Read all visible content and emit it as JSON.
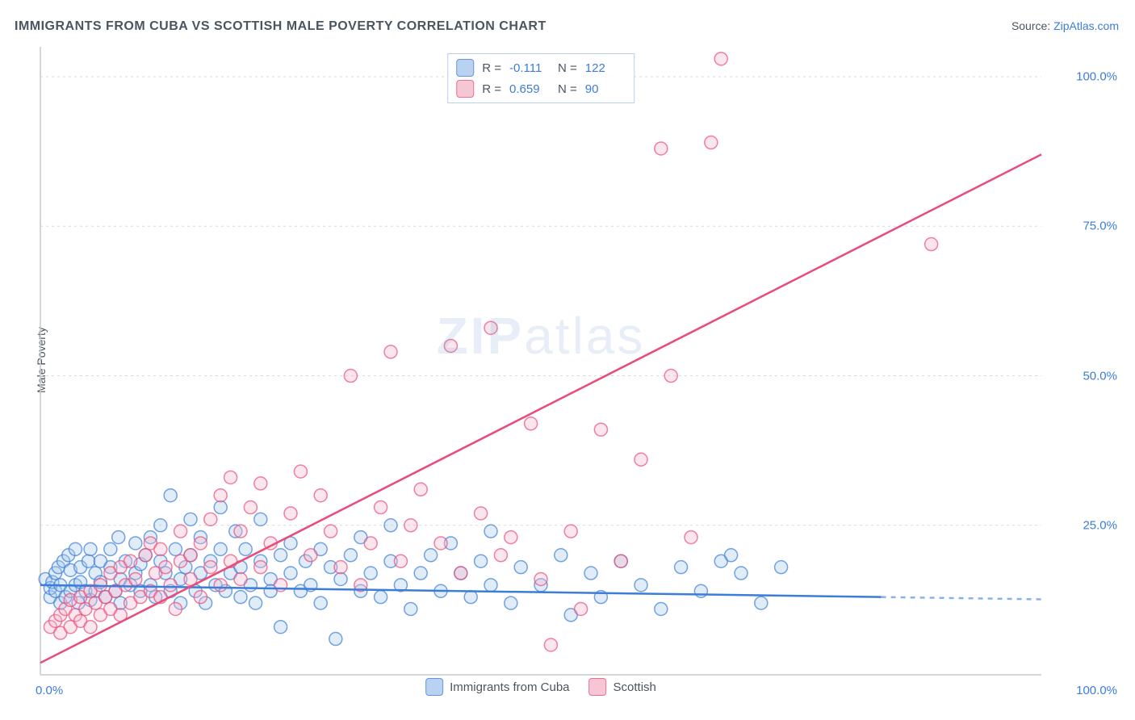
{
  "title": "IMMIGRANTS FROM CUBA VS SCOTTISH MALE POVERTY CORRELATION CHART",
  "source": {
    "label": "Source: ",
    "site": "ZipAtlas.com"
  },
  "y_axis_label": "Male Poverty",
  "watermark": {
    "part1": "ZIP",
    "part2": "atlas"
  },
  "chart": {
    "type": "scatter",
    "xlim": [
      0,
      100
    ],
    "ylim": [
      0,
      105
    ],
    "x_ticks": [
      {
        "value": 0,
        "label": "0.0%"
      },
      {
        "value": 100,
        "label": "100.0%"
      }
    ],
    "y_ticks": [
      {
        "value": 25,
        "label": "25.0%"
      },
      {
        "value": 50,
        "label": "50.0%"
      },
      {
        "value": 75,
        "label": "75.0%"
      },
      {
        "value": 100,
        "label": "100.0%"
      }
    ],
    "grid_color": "#d9d9d9",
    "axis_color": "#c9c9c9",
    "background_color": "#ffffff",
    "marker_radius": 8,
    "marker_stroke_width": 1.5,
    "fill_opacity": 0.35,
    "line_width": 2.5
  },
  "series": [
    {
      "key": "cuba",
      "name": "Immigrants from Cuba",
      "color_stroke": "#3b7dd8",
      "color_fill": "#a8c8ef",
      "R": "-0.111",
      "N": "122",
      "trend": {
        "x1": 0,
        "y1": 15,
        "x2": 84,
        "y2": 13,
        "dash_from_x": 84,
        "dash_to_x": 100
      },
      "points": [
        [
          0.5,
          16
        ],
        [
          1,
          13
        ],
        [
          1,
          14.5
        ],
        [
          1.2,
          15.5
        ],
        [
          1.5,
          17
        ],
        [
          1.5,
          14
        ],
        [
          1.8,
          18
        ],
        [
          2,
          12
        ],
        [
          2,
          15
        ],
        [
          2.3,
          19
        ],
        [
          2.5,
          13
        ],
        [
          2.8,
          20
        ],
        [
          3,
          14
        ],
        [
          3,
          17.5
        ],
        [
          3.5,
          15
        ],
        [
          3.5,
          21
        ],
        [
          3.8,
          12
        ],
        [
          4,
          18
        ],
        [
          4,
          15.5
        ],
        [
          4.5,
          14
        ],
        [
          4.8,
          19
        ],
        [
          5,
          21
        ],
        [
          5,
          12.5
        ],
        [
          5.5,
          17
        ],
        [
          5.5,
          14
        ],
        [
          6,
          15.5
        ],
        [
          6,
          19
        ],
        [
          6.5,
          13
        ],
        [
          7,
          18
        ],
        [
          7,
          21
        ],
        [
          7.5,
          14
        ],
        [
          7.8,
          23
        ],
        [
          8,
          16
        ],
        [
          8,
          12
        ],
        [
          8.5,
          19
        ],
        [
          9,
          15
        ],
        [
          9.5,
          17
        ],
        [
          9.5,
          22
        ],
        [
          10,
          14
        ],
        [
          10,
          18.5
        ],
        [
          10.5,
          20
        ],
        [
          11,
          15
        ],
        [
          11,
          23
        ],
        [
          11.5,
          13
        ],
        [
          12,
          19
        ],
        [
          12,
          25
        ],
        [
          12.5,
          17
        ],
        [
          13,
          14
        ],
        [
          13,
          30
        ],
        [
          13.5,
          21
        ],
        [
          14,
          16
        ],
        [
          14,
          12
        ],
        [
          14.5,
          18
        ],
        [
          15,
          20
        ],
        [
          15,
          26
        ],
        [
          15.5,
          14
        ],
        [
          16,
          17
        ],
        [
          16,
          23
        ],
        [
          16.5,
          12
        ],
        [
          17,
          19
        ],
        [
          17.5,
          15
        ],
        [
          18,
          21
        ],
        [
          18,
          28
        ],
        [
          18.5,
          14
        ],
        [
          19,
          17
        ],
        [
          19.5,
          24
        ],
        [
          20,
          13
        ],
        [
          20,
          18
        ],
        [
          20.5,
          21
        ],
        [
          21,
          15
        ],
        [
          21.5,
          12
        ],
        [
          22,
          19
        ],
        [
          22,
          26
        ],
        [
          23,
          16
        ],
        [
          23,
          14
        ],
        [
          24,
          20
        ],
        [
          24,
          8
        ],
        [
          25,
          17
        ],
        [
          25,
          22
        ],
        [
          26,
          14
        ],
        [
          26.5,
          19
        ],
        [
          27,
          15
        ],
        [
          28,
          21
        ],
        [
          28,
          12
        ],
        [
          29,
          18
        ],
        [
          29.5,
          6
        ],
        [
          30,
          16
        ],
        [
          31,
          20
        ],
        [
          32,
          14
        ],
        [
          32,
          23
        ],
        [
          33,
          17
        ],
        [
          34,
          13
        ],
        [
          35,
          19
        ],
        [
          35,
          25
        ],
        [
          36,
          15
        ],
        [
          37,
          11
        ],
        [
          38,
          17
        ],
        [
          39,
          20
        ],
        [
          40,
          14
        ],
        [
          41,
          22
        ],
        [
          42,
          17
        ],
        [
          43,
          13
        ],
        [
          44,
          19
        ],
        [
          45,
          15
        ],
        [
          45,
          24
        ],
        [
          47,
          12
        ],
        [
          48,
          18
        ],
        [
          50,
          15
        ],
        [
          52,
          20
        ],
        [
          53,
          10
        ],
        [
          55,
          17
        ],
        [
          56,
          13
        ],
        [
          58,
          19
        ],
        [
          60,
          15
        ],
        [
          62,
          11
        ],
        [
          64,
          18
        ],
        [
          66,
          14
        ],
        [
          68,
          19
        ],
        [
          69,
          20
        ],
        [
          70,
          17
        ],
        [
          72,
          12
        ],
        [
          74,
          18
        ]
      ]
    },
    {
      "key": "scottish",
      "name": "Scottish",
      "color_stroke": "#e94b7a",
      "color_fill": "#f6b8cb",
      "R": "0.659",
      "N": "90",
      "trend": {
        "x1": 0,
        "y1": 2,
        "x2": 100,
        "y2": 87
      },
      "points": [
        [
          1,
          8
        ],
        [
          1.5,
          9
        ],
        [
          2,
          10
        ],
        [
          2,
          7
        ],
        [
          2.5,
          11
        ],
        [
          3,
          8
        ],
        [
          3,
          12.5
        ],
        [
          3.5,
          10
        ],
        [
          4,
          9
        ],
        [
          4,
          13
        ],
        [
          4.5,
          11
        ],
        [
          5,
          8
        ],
        [
          5,
          14
        ],
        [
          5.5,
          12
        ],
        [
          6,
          10
        ],
        [
          6,
          15
        ],
        [
          6.5,
          13
        ],
        [
          7,
          11
        ],
        [
          7,
          17
        ],
        [
          7.5,
          14
        ],
        [
          8,
          10
        ],
        [
          8,
          18
        ],
        [
          8.5,
          15
        ],
        [
          9,
          12
        ],
        [
          9,
          19
        ],
        [
          9.5,
          16
        ],
        [
          10,
          13
        ],
        [
          10.5,
          20
        ],
        [
          11,
          14
        ],
        [
          11,
          22
        ],
        [
          11.5,
          17
        ],
        [
          12,
          13
        ],
        [
          12,
          21
        ],
        [
          12.5,
          18
        ],
        [
          13,
          15
        ],
        [
          13.5,
          11
        ],
        [
          14,
          19
        ],
        [
          14,
          24
        ],
        [
          15,
          16
        ],
        [
          15,
          20
        ],
        [
          16,
          13
        ],
        [
          16,
          22
        ],
        [
          17,
          18
        ],
        [
          17,
          26
        ],
        [
          18,
          15
        ],
        [
          18,
          30
        ],
        [
          19,
          19
        ],
        [
          19,
          33
        ],
        [
          20,
          16
        ],
        [
          20,
          24
        ],
        [
          21,
          28
        ],
        [
          22,
          18
        ],
        [
          22,
          32
        ],
        [
          23,
          22
        ],
        [
          24,
          15
        ],
        [
          25,
          27
        ],
        [
          26,
          34
        ],
        [
          27,
          20
        ],
        [
          28,
          30
        ],
        [
          29,
          24
        ],
        [
          30,
          18
        ],
        [
          31,
          50
        ],
        [
          32,
          15
        ],
        [
          33,
          22
        ],
        [
          34,
          28
        ],
        [
          35,
          54
        ],
        [
          36,
          19
        ],
        [
          37,
          25
        ],
        [
          38,
          31
        ],
        [
          40,
          22
        ],
        [
          41,
          55
        ],
        [
          42,
          17
        ],
        [
          44,
          27
        ],
        [
          45,
          58
        ],
        [
          46,
          20
        ],
        [
          47,
          23
        ],
        [
          49,
          42
        ],
        [
          50,
          16
        ],
        [
          51,
          5
        ],
        [
          53,
          24
        ],
        [
          54,
          11
        ],
        [
          56,
          41
        ],
        [
          58,
          19
        ],
        [
          60,
          36
        ],
        [
          62,
          88
        ],
        [
          63,
          50
        ],
        [
          65,
          23
        ],
        [
          67,
          89
        ],
        [
          68,
          103
        ],
        [
          89,
          72
        ]
      ]
    }
  ],
  "top_legend": {
    "r_label": "R =",
    "n_label": "N ="
  },
  "bottom_legend": {
    "items": [
      "cuba",
      "scottish"
    ]
  }
}
